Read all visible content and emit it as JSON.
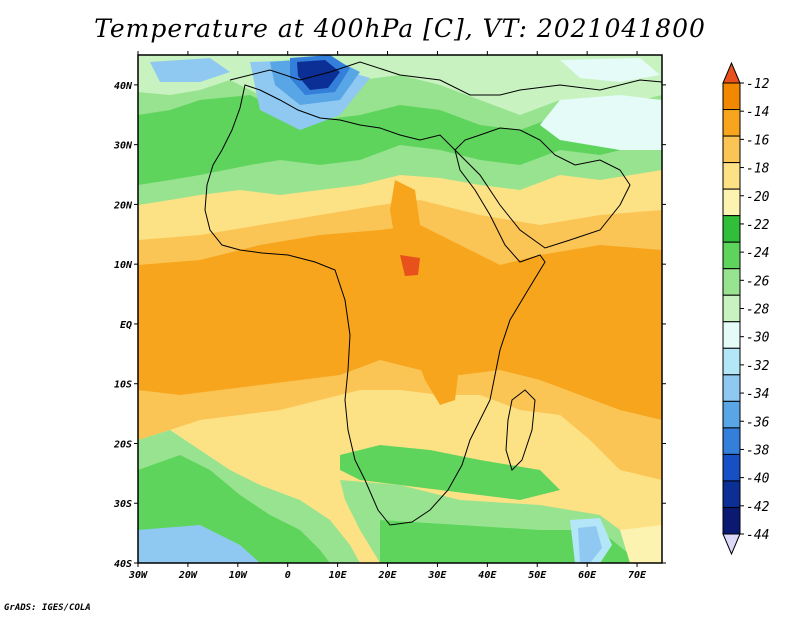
{
  "title": "Temperature at 400hPa [C], VT: 2021041800",
  "credit": "GrADS: IGES/COLA",
  "lon_labels": [
    "30W",
    "20W",
    "10W",
    "0",
    "10E",
    "20E",
    "30E",
    "40E",
    "50E",
    "60E",
    "70E"
  ],
  "lat_labels": [
    "40N",
    "30N",
    "20N",
    "10N",
    "EQ",
    "10S",
    "20S",
    "30S",
    "40S"
  ],
  "colorbar": {
    "labels": [
      "-12",
      "-14",
      "-16",
      "-18",
      "-20",
      "-22",
      "-24",
      "-26",
      "-28",
      "-30",
      "-32",
      "-34",
      "-36",
      "-38",
      "-40",
      "-42",
      "-44"
    ],
    "colors": [
      "#e8501c",
      "#f28800",
      "#f7a51d",
      "#fbc555",
      "#fde285",
      "#fdf3b0",
      "#2fbf38",
      "#5fd45d",
      "#98e38f",
      "#c8f3c1",
      "#e4fbf8",
      "#b3e7f7",
      "#8fc9f1",
      "#59a6e6",
      "#337fda",
      "#1650c4",
      "#0b2f94",
      "#0a1a73",
      "#dcd9fb"
    ],
    "range": [
      -44,
      -12
    ],
    "interval": 2
  },
  "domain": {
    "lon_range": [
      -30,
      75
    ],
    "lat_range": [
      -40,
      45
    ]
  },
  "colors": {
    "warm_max": "#e8501c",
    "tropics": "#f7a51d",
    "cold_core": "#0a1a73"
  }
}
